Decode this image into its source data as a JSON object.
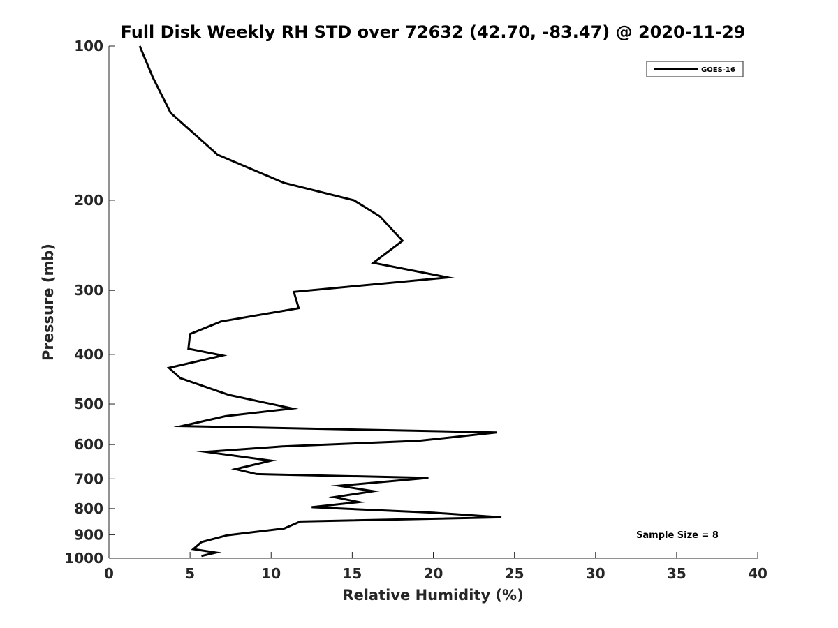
{
  "chart_data": {
    "type": "line",
    "title": "Full Disk Weekly RH STD over 72632 (42.70, -83.47) @ 2020-11-29",
    "xlabel": "Relative Humidity (%)",
    "ylabel": "Pressure (mb)",
    "xlim": [
      0,
      40
    ],
    "ylim": [
      100,
      1000
    ],
    "yscale": "log",
    "y_reversed": true,
    "grid": false,
    "xticks": [
      0,
      5,
      10,
      15,
      20,
      25,
      30,
      35,
      40
    ],
    "yticks": [
      100,
      200,
      300,
      400,
      500,
      600,
      700,
      800,
      900,
      1000
    ],
    "legend": {
      "position": "top-right",
      "entries": [
        "GOES-16"
      ]
    },
    "annotation": "Sample Size = 8",
    "series": [
      {
        "name": "GOES-16",
        "color": "#000000",
        "x": [
          1.9,
          2.7,
          3.8,
          6.7,
          10.8,
          15.1,
          16.7,
          18.1,
          16.3,
          20.9,
          11.4,
          11.7,
          6.9,
          5.0,
          4.9,
          7.0,
          3.7,
          4.4,
          7.4,
          11.3,
          7.2,
          4.5,
          23.9,
          19.1,
          10.7,
          6.0,
          10.0,
          7.8,
          9.1,
          19.7,
          14.2,
          16.3,
          13.9,
          15.4,
          12.5,
          20.0,
          24.2,
          11.8,
          10.8,
          7.3,
          5.7,
          5.2,
          6.6,
          5.7
        ],
        "y": [
          100,
          115,
          135,
          163,
          185,
          200,
          215,
          240,
          265,
          283,
          302,
          325,
          345,
          365,
          390,
          402,
          425,
          445,
          480,
          510,
          528,
          552,
          568,
          590,
          605,
          620,
          645,
          670,
          685,
          697,
          722,
          740,
          760,
          777,
          795,
          815,
          832,
          848,
          875,
          902,
          930,
          960,
          975,
          990
        ]
      }
    ]
  }
}
